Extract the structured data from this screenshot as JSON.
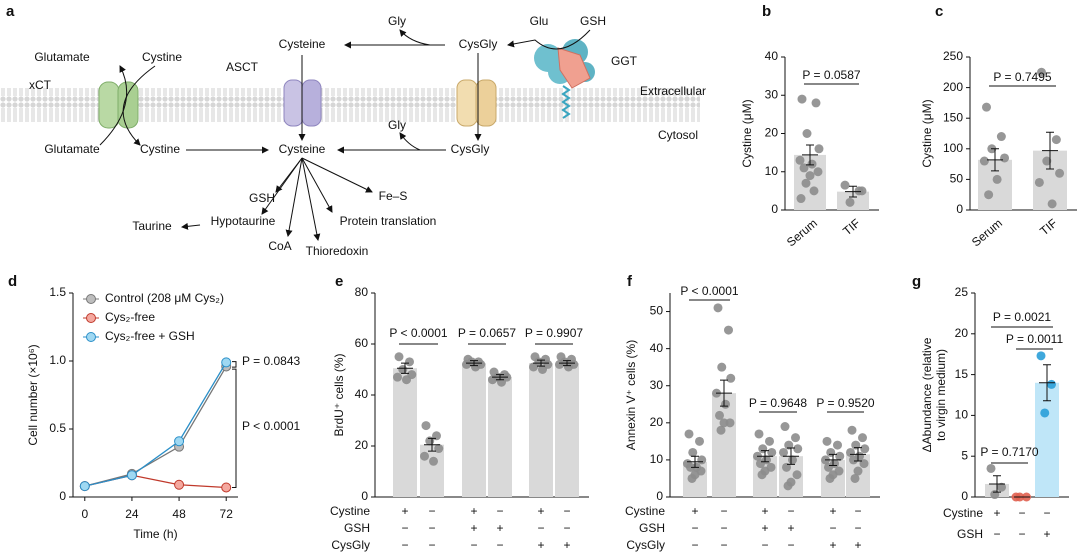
{
  "diagram": {
    "panel": "a",
    "labels": [
      "Glutamate",
      "Cystine",
      "xCT",
      "Glutamate",
      "Cystine",
      "ASCT",
      "Cysteine",
      "Gly",
      "CysGly",
      "Glu",
      "GSH",
      "GGT",
      "Extracellular",
      "Cytosol",
      "Gly",
      "Cysteine",
      "CysGly",
      "GSH",
      "Fe–S",
      "Hypotaurine",
      "Protein translation",
      "Taurine",
      "CoA",
      "Thioredoxin"
    ]
  },
  "chart_data": [
    {
      "type": "bar",
      "panel": "b",
      "ylabel": "Cystine (μM)",
      "categories": [
        "Serum",
        "TIF"
      ],
      "values": [
        14.4,
        4.8
      ],
      "errors": [
        2.6,
        1.4
      ],
      "points": [
        [
          29,
          28,
          20,
          16,
          13,
          12,
          11,
          10,
          9,
          7,
          5,
          3
        ],
        [
          6.5,
          5,
          2,
          5
        ]
      ],
      "color": "#d9d9d9",
      "point_color": "#8c8c8c",
      "ylim": [
        0,
        40
      ],
      "yticks": [
        0,
        10,
        20,
        30,
        40
      ],
      "annotations": [
        "P = 0.0587"
      ]
    },
    {
      "type": "bar",
      "panel": "c",
      "ylabel": "Cystine (μM)",
      "categories": [
        "Serum",
        "TIF"
      ],
      "values": [
        82,
        97
      ],
      "errors": [
        18,
        30
      ],
      "points": [
        [
          168,
          120,
          100,
          85,
          80,
          50,
          25
        ],
        [
          225,
          115,
          80,
          60,
          45,
          10
        ]
      ],
      "color": "#d9d9d9",
      "point_color": "#8c8c8c",
      "ylim": [
        0,
        250
      ],
      "yticks": [
        0,
        50,
        100,
        150,
        200,
        250
      ],
      "annotations": [
        "P = 0.7495"
      ]
    },
    {
      "type": "line",
      "panel": "d",
      "ylabel": "Cell number (×10⁶)",
      "xlabel": "Time (h)",
      "x": [
        0,
        24,
        48,
        72
      ],
      "xlim": [
        -6,
        78
      ],
      "xticks": [
        0,
        24,
        48,
        72
      ],
      "ylim": [
        0,
        1.5
      ],
      "yticks": [
        0,
        0.5,
        {
          "value": 1,
          "label": "1.0"
        },
        1.5
      ],
      "series": [
        {
          "name": "Control (208 μM Cys₂)",
          "color": "#777777",
          "fill": "#bdbdbd",
          "values": [
            0.08,
            0.17,
            0.37,
            0.96
          ]
        },
        {
          "name": "Cys₂-free",
          "color": "#c0392b",
          "fill": "#f4a89f",
          "values": [
            0.08,
            0.16,
            0.09,
            0.07
          ]
        },
        {
          "name": "Cys₂-free + GSH",
          "color": "#2a8fc8",
          "fill": "#9fd8f2",
          "values": [
            0.08,
            0.16,
            0.41,
            0.99
          ]
        }
      ],
      "legend": "upper left",
      "annotations": [
        "P = 0.0843",
        "P < 0.0001"
      ]
    },
    {
      "type": "bar",
      "panel": "e",
      "ylabel": "BrdU⁺ cells (%)",
      "values": [
        50.5,
        20.5,
        52.5,
        47,
        52.5,
        52.5
      ],
      "errors": [
        2,
        2.5,
        1,
        1,
        1.2,
        1
      ],
      "points": [
        [
          55,
          53,
          50,
          48,
          47,
          46
        ],
        [
          28,
          24,
          22,
          19,
          16,
          14
        ],
        [
          54,
          53,
          53,
          52,
          52,
          51
        ],
        [
          49,
          48,
          47,
          47,
          46,
          45
        ],
        [
          55,
          54,
          53,
          52,
          51,
          50
        ],
        [
          55,
          54,
          53,
          52,
          52,
          51
        ]
      ],
      "color": "#d9d9d9",
      "point_color": "#8c8c8c",
      "ylim": [
        0,
        80
      ],
      "yticks": [
        0,
        20,
        40,
        60,
        80
      ],
      "annotations": [
        "P < 0.0001",
        "P = 0.0657",
        "P = 0.9907"
      ],
      "conditions": [
        {
          "name": "Cystine",
          "values": [
            "+",
            "−",
            "+",
            "−",
            "+",
            "−"
          ]
        },
        {
          "name": "GSH",
          "values": [
            "−",
            "−",
            "+",
            "+",
            "−",
            "−"
          ]
        },
        {
          "name": "CysGly",
          "values": [
            "−",
            "−",
            "−",
            "−",
            "+",
            "+"
          ]
        }
      ]
    },
    {
      "type": "bar",
      "panel": "f",
      "ylabel": "Annexin V⁺ cells (%)",
      "values": [
        9.5,
        28,
        11,
        11,
        10,
        11.5
      ],
      "errors": [
        1.5,
        3.5,
        1.5,
        2.2,
        1.5,
        1.8
      ],
      "points": [
        [
          17,
          15,
          12,
          10,
          9,
          8,
          8,
          7,
          6,
          5
        ],
        [
          51,
          45,
          35,
          32,
          28,
          25,
          22,
          20,
          20,
          18
        ],
        [
          17,
          15,
          13,
          12,
          11,
          10,
          9,
          8,
          7,
          6
        ],
        [
          19,
          16,
          14,
          13,
          12,
          10,
          8,
          6,
          4,
          3
        ],
        [
          15,
          14,
          12,
          11,
          10,
          9,
          8,
          7,
          6,
          5
        ],
        [
          18,
          16,
          14,
          13,
          12,
          11,
          10,
          9,
          7,
          5
        ]
      ],
      "color": "#d9d9d9",
      "point_color": "#8c8c8c",
      "ylim": [
        0,
        55
      ],
      "yticks": [
        0,
        10,
        20,
        30,
        40,
        50
      ],
      "annotations": [
        "P < 0.0001",
        "P = 0.9648",
        "P = 0.9520"
      ],
      "conditions": [
        {
          "name": "Cystine",
          "values": [
            "+",
            "−",
            "+",
            "−",
            "+",
            "−"
          ]
        },
        {
          "name": "GSH",
          "values": [
            "−",
            "−",
            "+",
            "+",
            "−",
            "−"
          ]
        },
        {
          "name": "CysGly",
          "values": [
            "−",
            "−",
            "−",
            "−",
            "+",
            "+"
          ]
        }
      ]
    },
    {
      "type": "bar",
      "panel": "g",
      "ylabel": [
        "ΔAbundance (relative",
        "to virgin medium)"
      ],
      "values": [
        1.6,
        0,
        14
      ],
      "errors": [
        1,
        0,
        2.2
      ],
      "points": [
        [
          3.5,
          1.2,
          0.3
        ],
        [
          0,
          0,
          0
        ],
        [
          17.3,
          13.8,
          10.3
        ]
      ],
      "colors": [
        "#d9d9d9",
        "#f4c7c2",
        "#bfe6f8"
      ],
      "point_colors": [
        "#8c8c8c",
        "#e06050",
        "#2a9fd8"
      ],
      "ylim": [
        0,
        25
      ],
      "yticks": [
        0,
        5,
        10,
        15,
        20,
        25
      ],
      "annotations": [
        "P = 0.7170",
        "P = 0.0021",
        "P = 0.0011"
      ],
      "conditions": [
        {
          "name": "Cystine",
          "values": [
            "+",
            "−",
            "−"
          ]
        },
        {
          "name": "GSH",
          "values": [
            "−",
            "−",
            "+"
          ]
        }
      ]
    }
  ]
}
